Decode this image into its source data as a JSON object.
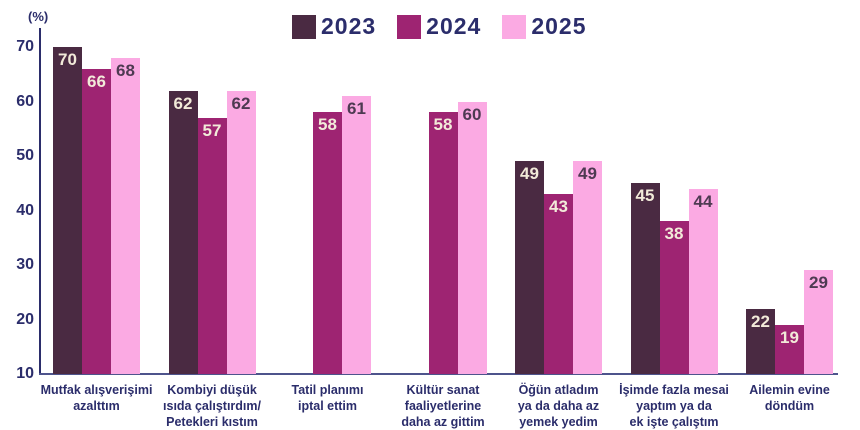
{
  "chart_data": {
    "type": "bar",
    "title": "",
    "unit_label": "(%)",
    "text_color": "#2b2d6b",
    "legend_position": "top",
    "grid": false,
    "ylim": [
      10,
      70
    ],
    "yticks": [
      10,
      20,
      30,
      40,
      50,
      60,
      70
    ],
    "categories": [
      "Mutfak alışverişimi\nazalttım",
      "Kombiyi düşük\nısıda çalıştırdım/\nPetekleri kıstım",
      "Tatil planımı\niptal ettim",
      "Kültür sanat\nfaaliyetlerine\ndaha az gittim",
      "Öğün atladım\nya da daha az\nyemek yedim",
      "İşimde fazla mesai\nyaptım ya da\nek işte çalıştım",
      "Ailemin evine\ndöndüm"
    ],
    "series": [
      {
        "name": "2023",
        "color": "#4a2a42",
        "label_color": "#f2ead9",
        "values": [
          70,
          62,
          null,
          null,
          49,
          45,
          22
        ]
      },
      {
        "name": "2024",
        "color": "#9e2472",
        "label_color": "#f2ead9",
        "values": [
          66,
          57,
          58,
          58,
          43,
          38,
          19
        ]
      },
      {
        "name": "2025",
        "color": "#fbaae3",
        "label_color": "#4e3a52",
        "values": [
          68,
          62,
          61,
          60,
          49,
          44,
          29
        ]
      }
    ]
  }
}
